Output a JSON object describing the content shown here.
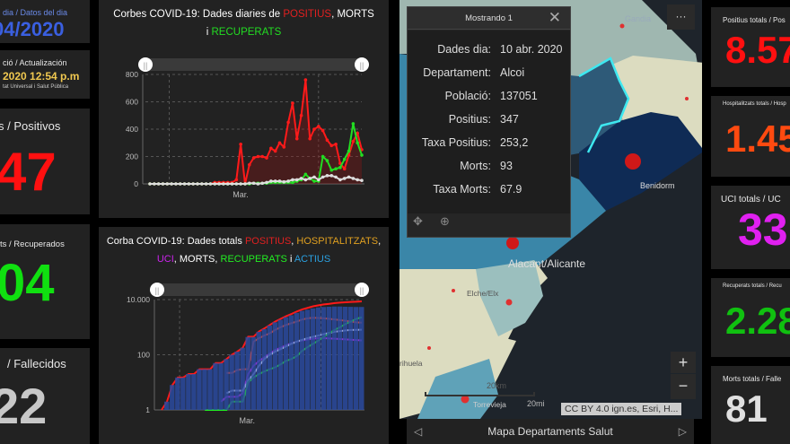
{
  "left_cards": [
    {
      "label": "dia / Datos del dia",
      "value": "04/2020",
      "color": "#3a5fe0"
    },
    {
      "label": "ció / Actualización",
      "value": "2020 12:54 p.m",
      "sub": "tat Universal i Salut Pública",
      "color": "#f0c850"
    },
    {
      "label": "s / Positivos",
      "value": "47",
      "color": "#ff1010"
    },
    {
      "label": "ts / Recuperados",
      "value": "04",
      "color": "#10e010"
    },
    {
      "label": "/ Fallecidos",
      "value": "22",
      "color": "#c8c8c8"
    }
  ],
  "right_cards": [
    {
      "label": "Positius totals / Pos",
      "value": "8.57",
      "color": "#ff1010"
    },
    {
      "label": "Hospitalitzats totals / Hosp",
      "value": "1.45",
      "color": "#ff4a10"
    },
    {
      "label": "UCI totals / UC",
      "value": "33",
      "color": "#e020f0"
    },
    {
      "label": "Recuperats totals / Recu",
      "value": "2.28",
      "color": "#10c010"
    },
    {
      "label": "Morts totals / Falle",
      "value": "81",
      "color": "#e0e0e0"
    }
  ],
  "chart_data": [
    {
      "type": "line",
      "title_parts": [
        "Corbes COVID-19: Dades diaries de ",
        "POSITIUS",
        ", MORTS",
        "i ",
        "RECUPERATS"
      ],
      "xlabel": "",
      "ylabel": "",
      "ylim": [
        0,
        800
      ],
      "yticks": [
        "800",
        "600",
        "400",
        "200",
        "0"
      ],
      "xtick": "Mar.",
      "series": [
        {
          "name": "POSITIUS",
          "color": "#ff1a1a",
          "values": [
            0,
            0,
            0,
            0,
            0,
            0,
            0,
            0,
            0,
            0,
            0,
            0,
            0,
            0,
            0,
            10,
            10,
            10,
            10,
            10,
            30,
            290,
            0,
            140,
            190,
            200,
            200,
            190,
            260,
            240,
            300,
            270,
            450,
            590,
            330,
            500,
            760,
            330,
            400,
            420,
            390,
            320,
            280,
            290,
            150,
            110,
            210,
            310,
            370,
            250
          ]
        },
        {
          "name": "RECUPERATS",
          "color": "#22dd22",
          "values": [
            0,
            0,
            0,
            0,
            0,
            0,
            0,
            0,
            0,
            0,
            0,
            0,
            0,
            0,
            0,
            0,
            0,
            0,
            0,
            0,
            0,
            0,
            0,
            0,
            5,
            5,
            5,
            5,
            10,
            10,
            10,
            10,
            10,
            10,
            20,
            30,
            70,
            40,
            20,
            20,
            200,
            170,
            100,
            110,
            120,
            180,
            240,
            440,
            300,
            210
          ]
        },
        {
          "name": "MORTS",
          "color": "#dddddd",
          "values": [
            0,
            0,
            0,
            0,
            0,
            0,
            0,
            0,
            0,
            0,
            0,
            0,
            0,
            0,
            0,
            0,
            0,
            0,
            0,
            0,
            0,
            0,
            0,
            5,
            5,
            0,
            5,
            10,
            20,
            20,
            20,
            15,
            20,
            30,
            30,
            40,
            30,
            40,
            50,
            30,
            50,
            60,
            60,
            50,
            30,
            40,
            50,
            40,
            30,
            25
          ]
        }
      ]
    },
    {
      "type": "line",
      "title_parts": [
        "Corba COVID-19: Dades totals ",
        "POSITIUS",
        ", ",
        "HOSPITALITZATS",
        ",",
        "UCI",
        ", MORTS, ",
        "RECUPERATS",
        " i ",
        "ACTIUS"
      ],
      "xlabel": "",
      "ylabel": "",
      "yscale": "log",
      "ylim": [
        1,
        10000
      ],
      "yticks": [
        "10.000",
        "100",
        "1"
      ],
      "xtick": "Mar.",
      "series": [
        {
          "name": "POSITIUS",
          "color": "#ff1a1a",
          "values": [
            1,
            2,
            8,
            15,
            15,
            20,
            20,
            30,
            30,
            30,
            50,
            50,
            70,
            100,
            130,
            180,
            450,
            450,
            700,
            900,
            1200,
            1600,
            2000,
            2500,
            3000,
            3700,
            4400,
            5000,
            5700,
            6200,
            6700,
            7000,
            7500,
            7800,
            8000,
            8200,
            8400,
            8570
          ]
        },
        {
          "name": "HOSPITALITZATS",
          "color": "#ff4a20",
          "values": [
            null,
            null,
            null,
            null,
            null,
            null,
            null,
            null,
            null,
            null,
            null,
            null,
            22,
            22,
            28,
            30,
            30,
            300,
            400,
            500,
            600,
            800,
            1000,
            1200,
            1400,
            1600,
            1900,
            2100,
            2200,
            2150,
            2100,
            2000,
            1900,
            1800,
            1700,
            1600,
            1500,
            1450
          ]
        },
        {
          "name": "UCI",
          "color": "#cc22ee",
          "values": [
            null,
            null,
            null,
            null,
            null,
            null,
            null,
            null,
            null,
            null,
            null,
            2,
            3,
            3,
            3,
            4,
            20,
            40,
            60,
            80,
            110,
            150,
            180,
            220,
            260,
            300,
            330,
            360,
            380,
            400,
            400,
            390,
            380,
            370,
            360,
            350,
            340,
            330
          ]
        },
        {
          "name": "MORTS",
          "color": "#e0e0ff",
          "values": [
            null,
            null,
            null,
            null,
            null,
            null,
            null,
            null,
            null,
            null,
            null,
            null,
            4,
            5,
            5,
            5,
            12,
            20,
            40,
            70,
            100,
            130,
            160,
            200,
            250,
            300,
            350,
            400,
            450,
            500,
            560,
            620,
            680,
            720,
            760,
            790,
            800,
            810
          ]
        },
        {
          "name": "RECUPERATS",
          "color": "#22ee22",
          "values": [
            null,
            null,
            null,
            null,
            null,
            null,
            null,
            null,
            1,
            1,
            1,
            1,
            1,
            2,
            2,
            2,
            10,
            15,
            20,
            25,
            30,
            35,
            45,
            60,
            70,
            90,
            140,
            190,
            250,
            330,
            450,
            600,
            800,
            1000,
            1300,
            1600,
            2000,
            2280
          ]
        },
        {
          "name": "ACTIUS",
          "color": "#2a4aa0",
          "values": [
            1,
            2,
            8,
            15,
            15,
            20,
            20,
            30,
            30,
            30,
            50,
            50,
            70,
            100,
            130,
            180,
            440,
            440,
            680,
            850,
            1150,
            1500,
            1850,
            2300,
            2700,
            3300,
            3900,
            4300,
            4800,
            5200,
            5400,
            5500,
            5600,
            5600,
            5500,
            5450,
            5400,
            5400
          ]
        }
      ]
    }
  ],
  "map": {
    "popup": {
      "title": "Mostrando 1",
      "rows": [
        {
          "k": "Dades dia:",
          "v": "10 abr. 2020"
        },
        {
          "k": "Departament:",
          "v": "Alcoi"
        },
        {
          "k": "Població:",
          "v": "137051"
        },
        {
          "k": "Positius:",
          "v": "347"
        },
        {
          "k": "Taxa Positius:",
          "v": "253,2"
        },
        {
          "k": "Morts:",
          "v": "93"
        },
        {
          "k": "Taxa Morts:",
          "v": "67.9"
        }
      ]
    },
    "places": [
      "Gandia",
      "Benidorm",
      "Alacant/Alicante",
      "Elche/Elx",
      "rihuela",
      "Torrevieja"
    ],
    "scale_km": "20km",
    "scale_mi": "20mi",
    "attribution": "CC BY 4.0 ign.es, Esri, H...",
    "more": "···",
    "zoom_in": "+",
    "zoom_out": "−",
    "footer": "Mapa Departaments Salut"
  }
}
